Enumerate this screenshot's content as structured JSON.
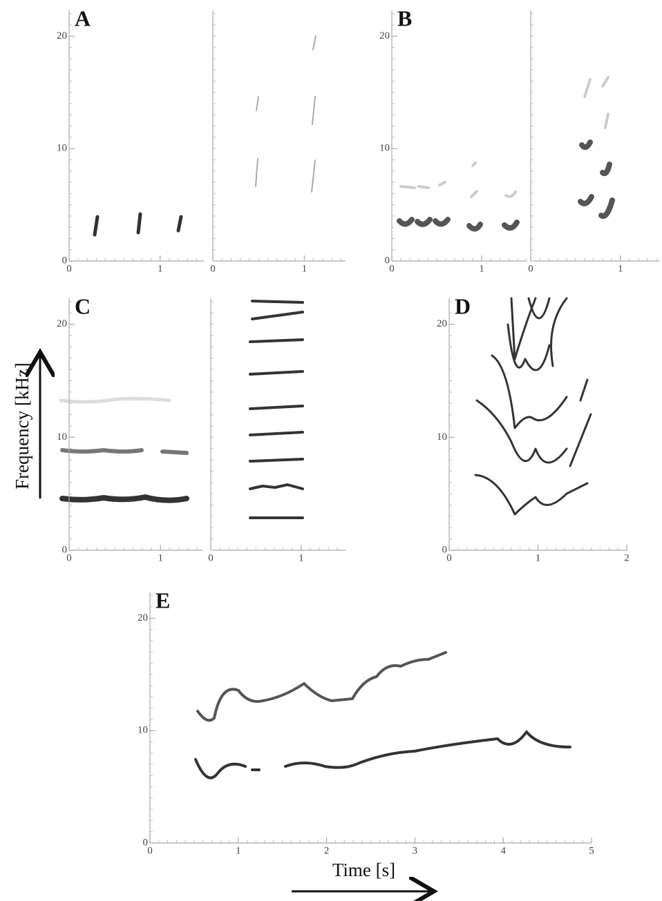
{
  "chart_data": [
    {
      "type": "spectrogram",
      "panel": "A",
      "xlim": [
        0,
        1.48
      ],
      "ylim": [
        0,
        22.3
      ],
      "xticks": [
        0,
        1
      ],
      "yticks": [
        0,
        10,
        20
      ]
    },
    {
      "type": "spectrogram",
      "xlim": [
        0,
        1.45
      ],
      "ylim": [
        0,
        22.3
      ],
      "xticks": [
        0,
        1
      ]
    },
    {
      "type": "spectrogram",
      "panel": "B",
      "xlim": [
        0,
        1.5
      ],
      "ylim": [
        0,
        22.3
      ],
      "xticks": [
        0,
        1
      ],
      "yticks": [
        0,
        10,
        20
      ]
    },
    {
      "type": "spectrogram",
      "xlim": [
        0,
        1.44
      ],
      "ylim": [
        0,
        22.3
      ],
      "xticks": [
        0,
        1
      ]
    },
    {
      "type": "spectrogram",
      "panel": "C",
      "y_label": "Frequency [kHz]",
      "xlim": [
        0,
        1.46
      ],
      "ylim": [
        0,
        22.3
      ],
      "xticks": [
        0,
        1
      ],
      "yticks": [
        0,
        10,
        20
      ]
    },
    {
      "type": "spectrogram",
      "xlim": [
        0,
        1.49
      ],
      "ylim": [
        0,
        22.3
      ],
      "xticks": [
        0,
        1
      ]
    },
    {
      "type": "spectrogram",
      "panel": "D",
      "xlim": [
        0,
        2
      ],
      "ylim": [
        0,
        22.3
      ],
      "xticks": [
        0,
        1,
        2
      ],
      "yticks": [
        0,
        10,
        20
      ]
    },
    {
      "type": "spectrogram",
      "panel": "E",
      "x_label": "Time [s]",
      "xlim": [
        0,
        5
      ],
      "ylim": [
        0,
        22.3
      ],
      "xticks": [
        0,
        1,
        2,
        3,
        4,
        5
      ],
      "yticks": [
        0,
        10,
        20
      ]
    }
  ]
}
